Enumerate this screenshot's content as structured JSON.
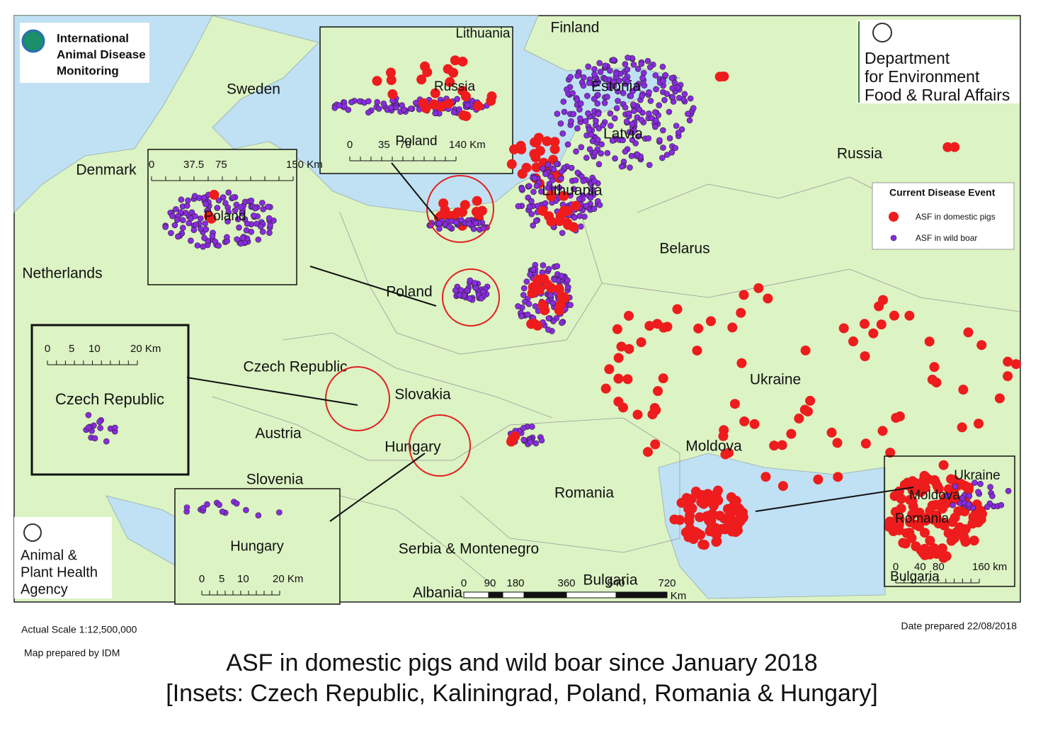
{
  "title": [
    "ASF in domestic pigs and wild boar since January 2018",
    "[Insets: Czech Republic, Kaliningrad, Poland, Romania & Hungary]"
  ],
  "scale": "Actual Scale 1:12,500,000",
  "prepared_by": "Map prepared by IDM",
  "date": "Date prepared 22/08/2018",
  "logos": {
    "idm": [
      "International",
      "Animal Disease",
      "Monitoring"
    ],
    "defra": [
      "Department",
      "for Environment",
      "Food & Rural Affairs"
    ],
    "apha": [
      "Animal &",
      "Plant Health",
      "Agency"
    ]
  },
  "legend": {
    "title": "Current Disease Event",
    "items": [
      "ASF in domestic pigs",
      "ASF in wild boar"
    ]
  },
  "countries": [
    "Finland",
    "Sweden",
    "Estonia",
    "Latvia",
    "Lithuania",
    "Russia",
    "Denmark",
    "Netherlands",
    "Poland",
    "Belarus",
    "Czech Republic",
    "Slovakia",
    "Ukraine",
    "Austria",
    "Hungary",
    "Moldova",
    "Slovenia",
    "Romania",
    "Serbia & Montenegro",
    "Bulgaria",
    "Albania"
  ],
  "main_scale": [
    "0",
    "90",
    "180",
    "360",
    "540",
    "720",
    "Km"
  ],
  "insets": [
    {
      "labels": [
        "Lithuania",
        "Russia",
        "Poland"
      ],
      "scale": [
        "0",
        "35",
        "70",
        "140 Km"
      ]
    },
    {
      "labels": [
        "Poland"
      ],
      "scale": [
        "0",
        "37.5",
        "75",
        "150 Km"
      ]
    },
    {
      "labels": [
        "Czech Republic"
      ],
      "scale": [
        "0",
        "5",
        "10",
        "20 Km"
      ]
    },
    {
      "labels": [
        "Hungary"
      ],
      "scale": [
        "0",
        "5",
        "10",
        "20 Km"
      ]
    },
    {
      "labels": [
        "Ukraine",
        "Moldova",
        "Romania",
        "Bulgaria"
      ],
      "scale": [
        "0",
        "40",
        "80",
        "160 km"
      ]
    }
  ]
}
